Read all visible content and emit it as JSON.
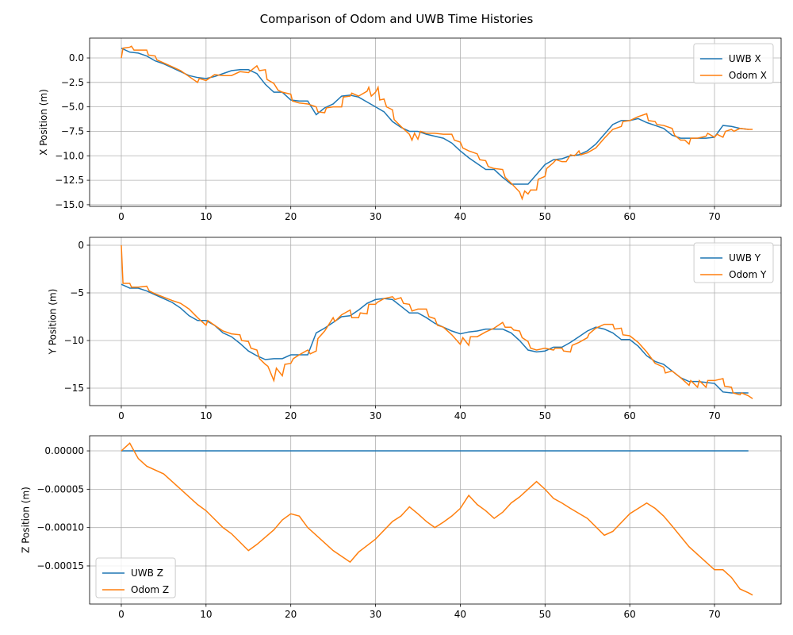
{
  "title": "Comparison of Odom and UWB Time Histories",
  "chart_data": [
    {
      "type": "line",
      "ylabel": "X Position (m)",
      "legend": "upper right",
      "grid": true,
      "xlim": [
        -3.74,
        77.86
      ],
      "ylim": [
        -15.17,
        2.03
      ],
      "xticks": [
        0,
        10,
        20,
        30,
        40,
        50,
        60,
        70
      ],
      "yticks": [
        {
          "value": 0,
          "label": "0.0"
        },
        {
          "value": -2.5,
          "label": "−2.5"
        },
        {
          "value": -5,
          "label": "−5.0"
        },
        {
          "value": -7.5,
          "label": "−7.5"
        },
        {
          "value": -10,
          "label": "−10.0"
        },
        {
          "value": -12.5,
          "label": "−12.5"
        },
        {
          "value": -15,
          "label": "−15.0"
        }
      ],
      "series": [
        {
          "name": "UWB X",
          "color": "#1f77b4",
          "x": [
            0,
            1,
            2,
            3,
            4,
            5,
            6,
            7,
            8,
            9,
            10,
            11,
            12,
            13,
            14,
            15,
            16,
            17,
            18,
            19,
            20,
            21,
            22,
            23,
            24,
            25,
            26,
            27,
            28,
            29,
            30,
            31,
            32,
            33,
            34,
            35,
            36,
            37,
            38,
            39,
            40,
            41,
            42,
            43,
            44,
            45,
            46,
            47,
            48,
            49,
            50,
            51,
            52,
            53,
            54,
            55,
            56,
            57,
            58,
            59,
            60,
            61,
            62,
            63,
            64,
            65,
            66,
            67,
            68,
            69,
            70,
            71,
            72,
            73,
            74
          ],
          "values": [
            1.0,
            0.6,
            0.5,
            0.2,
            -0.3,
            -0.6,
            -1.0,
            -1.4,
            -1.8,
            -2.0,
            -2.1,
            -1.9,
            -1.6,
            -1.3,
            -1.2,
            -1.2,
            -1.6,
            -2.7,
            -3.5,
            -3.5,
            -4.3,
            -4.4,
            -4.4,
            -5.8,
            -5.1,
            -4.7,
            -3.9,
            -3.8,
            -4.0,
            -4.5,
            -5.0,
            -5.5,
            -6.5,
            -7.1,
            -7.5,
            -7.5,
            -7.8,
            -8.0,
            -8.2,
            -8.7,
            -9.5,
            -10.2,
            -10.8,
            -11.4,
            -11.4,
            -12.2,
            -12.9,
            -12.9,
            -12.9,
            -11.9,
            -10.9,
            -10.4,
            -10.3,
            -10.0,
            -9.9,
            -9.5,
            -8.8,
            -7.8,
            -6.8,
            -6.4,
            -6.4,
            -6.2,
            -6.6,
            -6.9,
            -7.2,
            -7.9,
            -8.2,
            -8.2,
            -8.2,
            -8.2,
            -8.1,
            -6.9,
            -7.0,
            -7.2,
            -7.3
          ]
        },
        {
          "name": "Odom X",
          "color": "#ff7f0e",
          "x": [
            0,
            0.2,
            1,
            1.2,
            1.5,
            3,
            3.2,
            4,
            4.2,
            6,
            7,
            8,
            9,
            9.2,
            10,
            11,
            12,
            13,
            14,
            15,
            16,
            16.3,
            17,
            17.2,
            18,
            18.5,
            19,
            20,
            20.2,
            21,
            22,
            23,
            23.2,
            24,
            24.2,
            25,
            26,
            26.2,
            27,
            27.2,
            28,
            29,
            29.2,
            29.5,
            30,
            30.3,
            30.5,
            31,
            31.3,
            32,
            32.2,
            33,
            34,
            34.3,
            34.6,
            35,
            35.3,
            36,
            37,
            38,
            39,
            39.3,
            40,
            40.3,
            41,
            42,
            42.3,
            43,
            43.3,
            44,
            45,
            45.3,
            46,
            47,
            47.3,
            47.6,
            48,
            48.3,
            49,
            49.2,
            50,
            50.2,
            51,
            51.3,
            52,
            52.5,
            53,
            53.5,
            54,
            54.2,
            55,
            56,
            57,
            58,
            59,
            59.2,
            60,
            61,
            62,
            62.2,
            63,
            63.2,
            64,
            65,
            65.3,
            66,
            66.5,
            67,
            67.2,
            68,
            69,
            69.2,
            70,
            70.3,
            71,
            71.3,
            72,
            72.3,
            73,
            74,
            74.5
          ],
          "values": [
            0,
            1.0,
            1.1,
            1.2,
            0.8,
            0.8,
            0.3,
            0.2,
            -0.2,
            -0.9,
            -1.3,
            -1.9,
            -2.5,
            -2.1,
            -2.3,
            -1.7,
            -1.8,
            -1.8,
            -1.4,
            -1.5,
            -0.8,
            -1.3,
            -1.2,
            -2.2,
            -2.6,
            -3.3,
            -3.5,
            -3.7,
            -4.4,
            -4.6,
            -4.7,
            -5.0,
            -5.5,
            -5.6,
            -5.1,
            -5.0,
            -5.0,
            -4.0,
            -3.9,
            -3.6,
            -3.9,
            -3.4,
            -3.0,
            -3.9,
            -3.5,
            -3.0,
            -4.3,
            -4.2,
            -5.0,
            -5.3,
            -6.3,
            -7.0,
            -7.8,
            -8.4,
            -7.7,
            -8.3,
            -7.5,
            -7.7,
            -7.7,
            -7.8,
            -7.8,
            -8.4,
            -8.6,
            -9.2,
            -9.5,
            -9.8,
            -10.4,
            -10.5,
            -11.1,
            -11.3,
            -11.4,
            -12.2,
            -12.8,
            -13.7,
            -14.4,
            -13.6,
            -13.9,
            -13.5,
            -13.5,
            -12.4,
            -12.1,
            -11.3,
            -10.7,
            -10.4,
            -10.6,
            -10.6,
            -9.9,
            -10.0,
            -9.5,
            -9.9,
            -9.7,
            -9.2,
            -8.2,
            -7.3,
            -7.0,
            -6.5,
            -6.4,
            -6.0,
            -5.7,
            -6.4,
            -6.5,
            -6.8,
            -6.9,
            -7.2,
            -7.9,
            -8.4,
            -8.4,
            -8.8,
            -8.2,
            -8.2,
            -8.0,
            -7.7,
            -8.1,
            -7.8,
            -8.1,
            -7.5,
            -7.3,
            -7.5,
            -7.2,
            -7.3,
            -7.3
          ]
        }
      ]
    },
    {
      "type": "line",
      "ylabel": "Y Position (m)",
      "legend": "upper right",
      "grid": true,
      "xlim": [
        -3.74,
        77.86
      ],
      "ylim": [
        -16.83,
        0.83
      ],
      "xticks": [
        0,
        10,
        20,
        30,
        40,
        50,
        60,
        70
      ],
      "yticks": [
        0,
        {
          "value": -5,
          "label": "−5"
        },
        {
          "value": -10,
          "label": "−10"
        },
        {
          "value": -15,
          "label": "−15"
        }
      ],
      "series": [
        {
          "name": "UWB Y",
          "color": "#1f77b4",
          "x": [
            0,
            1,
            2,
            3,
            4,
            5,
            6,
            7,
            8,
            9,
            10,
            11,
            12,
            13,
            14,
            15,
            16,
            17,
            18,
            19,
            20,
            21,
            22,
            23,
            24,
            25,
            26,
            27,
            28,
            29,
            30,
            31,
            32,
            33,
            34,
            35,
            36,
            37,
            38,
            39,
            40,
            41,
            42,
            43,
            44,
            45,
            46,
            47,
            48,
            49,
            50,
            51,
            52,
            53,
            54,
            55,
            56,
            57,
            58,
            59,
            60,
            61,
            62,
            63,
            64,
            65,
            66,
            67,
            68,
            69,
            70,
            71,
            72,
            73,
            74
          ],
          "values": [
            -4.1,
            -4.5,
            -4.5,
            -4.8,
            -5.2,
            -5.6,
            -6.0,
            -6.6,
            -7.4,
            -7.9,
            -7.9,
            -8.4,
            -9.2,
            -9.6,
            -10.3,
            -11.1,
            -11.6,
            -12.0,
            -11.9,
            -11.9,
            -11.5,
            -11.5,
            -11.5,
            -9.2,
            -8.7,
            -8.1,
            -7.5,
            -7.4,
            -6.8,
            -6.1,
            -5.7,
            -5.6,
            -5.7,
            -6.4,
            -7.1,
            -7.1,
            -7.6,
            -8.2,
            -8.6,
            -9.0,
            -9.3,
            -9.1,
            -9.0,
            -8.8,
            -8.8,
            -8.8,
            -9.2,
            -10.0,
            -11.0,
            -11.2,
            -11.1,
            -10.7,
            -10.7,
            -10.2,
            -9.6,
            -9.0,
            -8.6,
            -8.8,
            -9.2,
            -9.9,
            -9.9,
            -10.6,
            -11.6,
            -12.2,
            -12.5,
            -13.2,
            -13.9,
            -14.3,
            -14.3,
            -14.4,
            -14.5,
            -15.4,
            -15.5,
            -15.5,
            -15.5
          ]
        },
        {
          "name": "Odom Y",
          "color": "#ff7f0e",
          "x": [
            0,
            0.2,
            1,
            1.2,
            2,
            3,
            3.3,
            4,
            6,
            7,
            8,
            9,
            10,
            10.2,
            11,
            12,
            13,
            14,
            14.2,
            15,
            15.3,
            16,
            16.3,
            17,
            17.3,
            18,
            18.3,
            19,
            19.3,
            20,
            20.3,
            21,
            22,
            22.3,
            23,
            23.2,
            24,
            25,
            25.2,
            26,
            27,
            27.2,
            28,
            28.2,
            29,
            29.2,
            30,
            30.2,
            31,
            32,
            32.3,
            33,
            33.3,
            34,
            34.3,
            35,
            36,
            36.3,
            37,
            37.3,
            38,
            39,
            40,
            40.3,
            41,
            41.2,
            42,
            43,
            44,
            45,
            45.3,
            46,
            46.3,
            47,
            47.3,
            48,
            48.3,
            49,
            50,
            51,
            51.2,
            52,
            52.2,
            53,
            53.2,
            54,
            55,
            55.2,
            56,
            57,
            58,
            58.2,
            59,
            59.2,
            60,
            61,
            61.3,
            62,
            63,
            64,
            64.2,
            65,
            66,
            67,
            67.2,
            68,
            68.2,
            69,
            69.2,
            70,
            71,
            71.2,
            72,
            72.2,
            73,
            73.2,
            74,
            74.5
          ],
          "values": [
            0,
            -4.0,
            -4.0,
            -4.4,
            -4.4,
            -4.3,
            -4.8,
            -5.1,
            -5.8,
            -6.1,
            -6.7,
            -7.6,
            -8.4,
            -7.9,
            -8.4,
            -9.0,
            -9.3,
            -9.4,
            -10.0,
            -10.1,
            -10.8,
            -11.0,
            -11.9,
            -12.5,
            -12.7,
            -14.2,
            -12.9,
            -13.7,
            -12.5,
            -12.4,
            -11.9,
            -11.5,
            -11.0,
            -11.4,
            -11.1,
            -9.8,
            -9.0,
            -7.6,
            -8.0,
            -7.3,
            -6.8,
            -7.6,
            -7.6,
            -7.1,
            -7.2,
            -6.2,
            -6.2,
            -6.0,
            -5.6,
            -5.4,
            -5.7,
            -5.5,
            -6.1,
            -6.2,
            -6.9,
            -6.7,
            -6.7,
            -7.5,
            -7.7,
            -8.4,
            -8.6,
            -9.4,
            -10.4,
            -9.7,
            -10.5,
            -9.6,
            -9.6,
            -9.1,
            -8.7,
            -8.1,
            -8.6,
            -8.6,
            -8.9,
            -9.0,
            -9.7,
            -10.1,
            -10.8,
            -11.0,
            -10.8,
            -11.0,
            -10.8,
            -10.8,
            -11.1,
            -11.2,
            -10.5,
            -10.2,
            -9.7,
            -9.3,
            -8.7,
            -8.3,
            -8.3,
            -8.8,
            -8.7,
            -9.4,
            -9.5,
            -10.2,
            -10.5,
            -11.2,
            -12.4,
            -12.8,
            -13.4,
            -13.2,
            -13.9,
            -14.7,
            -14.2,
            -14.9,
            -14.2,
            -14.9,
            -14.2,
            -14.2,
            -14.0,
            -14.8,
            -14.9,
            -15.5,
            -15.7,
            -15.5,
            -15.8,
            -16.1
          ]
        }
      ]
    },
    {
      "type": "line",
      "ylabel": "Z Position (m)",
      "legend": "lower left",
      "grid": true,
      "xlim": [
        -3.74,
        77.86
      ],
      "ylim": [
        -0.0001997,
        1.97e-05
      ],
      "xticks": [
        0,
        10,
        20,
        30,
        40,
        50,
        60,
        70
      ],
      "yticks": [
        {
          "value": 0,
          "label": "0.00000"
        },
        {
          "value": -5e-05,
          "label": "−0.00005"
        },
        {
          "value": -0.0001,
          "label": "−0.00010"
        },
        {
          "value": -0.00015,
          "label": "−0.00015"
        }
      ],
      "series": [
        {
          "name": "UWB Z",
          "color": "#1f77b4",
          "x": [
            0,
            74
          ],
          "values": [
            0,
            0
          ]
        },
        {
          "name": "Odom Z",
          "color": "#ff7f0e",
          "x": [
            0,
            1,
            2,
            3,
            5,
            7,
            9,
            10,
            12,
            13,
            15,
            16,
            18,
            19,
            20,
            21,
            22,
            23,
            25,
            27,
            28,
            30,
            32,
            33,
            34,
            35,
            36,
            37,
            38,
            39,
            40,
            41,
            42,
            43,
            44,
            45,
            46,
            47,
            48,
            49,
            50,
            51,
            52,
            53,
            55,
            57,
            58,
            60,
            61,
            62,
            63,
            64,
            65,
            67,
            69,
            70,
            71,
            72,
            73,
            74,
            74.5
          ],
          "values": [
            0,
            1e-05,
            -1e-05,
            -2e-05,
            -3e-05,
            -5e-05,
            -7e-05,
            -7.8e-05,
            -0.0001,
            -0.000108,
            -0.00013,
            -0.000122,
            -0.000103,
            -9e-05,
            -8.2e-05,
            -8.5e-05,
            -0.0001,
            -0.00011,
            -0.00013,
            -0.000145,
            -0.000132,
            -0.000115,
            -9.2e-05,
            -8.5e-05,
            -7.3e-05,
            -8.2e-05,
            -9.2e-05,
            -0.0001,
            -9.3e-05,
            -8.5e-05,
            -7.5e-05,
            -5.8e-05,
            -7e-05,
            -7.8e-05,
            -8.8e-05,
            -8e-05,
            -6.8e-05,
            -6e-05,
            -5e-05,
            -4e-05,
            -5e-05,
            -6.2e-05,
            -6.8e-05,
            -7.5e-05,
            -8.8e-05,
            -0.00011,
            -0.000105,
            -8.2e-05,
            -7.5e-05,
            -6.8e-05,
            -7.5e-05,
            -8.5e-05,
            -9.8e-05,
            -0.000125,
            -0.000145,
            -0.000155,
            -0.000155,
            -0.000165,
            -0.00018,
            -0.000185,
            -0.000188
          ]
        }
      ]
    }
  ]
}
